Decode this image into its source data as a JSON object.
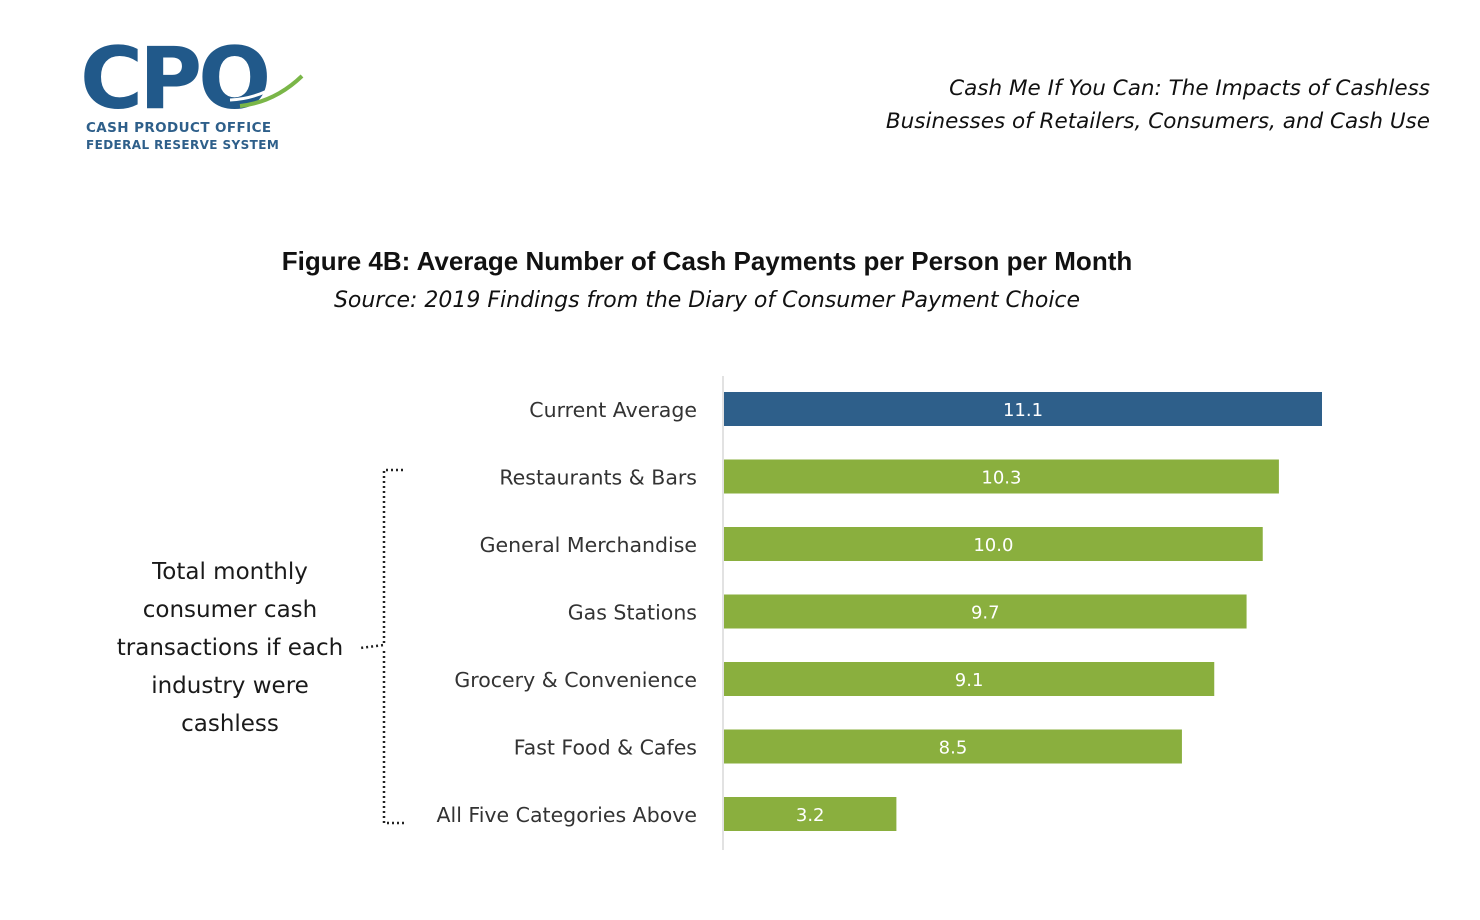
{
  "logo": {
    "letters": "CPO",
    "line1": "CASH PRODUCT OFFICE",
    "line2": "FEDERAL RESERVE SYSTEM",
    "colors": {
      "blue": "#21598a",
      "green": "#7ab648"
    }
  },
  "report_title": {
    "line1": "Cash Me If You Can: The Impacts of Cashless",
    "line2": "Businesses of Retailers, Consumers, and Cash Use"
  },
  "figure": {
    "title": "Figure 4B: Average Number of Cash Payments per Person per Month",
    "source": "Source: 2019 Findings from the Diary of Consumer Payment Choice"
  },
  "bracket_label": "Total monthly consumer cash transactions if each industry were cashless",
  "chart_data": {
    "type": "bar",
    "orientation": "horizontal",
    "title": "",
    "xlabel": "",
    "ylabel": "",
    "xlim": [
      0,
      11.1
    ],
    "grid": false,
    "categories": [
      "Current Average",
      "Restaurants & Bars",
      "General Merchandise",
      "Gas Stations",
      "Grocery & Convenience",
      "Fast Food & Cafes",
      "All Five Categories Above"
    ],
    "values": [
      11.1,
      10.3,
      10.0,
      9.7,
      9.1,
      8.5,
      3.2
    ],
    "data_labels": [
      "11.1",
      "10.3",
      "10.0",
      "9.7",
      "9.1",
      "8.5",
      "3.2"
    ],
    "colors": [
      "#2e5f8a",
      "#8aaf3e",
      "#8aaf3e",
      "#8aaf3e",
      "#8aaf3e",
      "#8aaf3e",
      "#8aaf3e"
    ]
  }
}
